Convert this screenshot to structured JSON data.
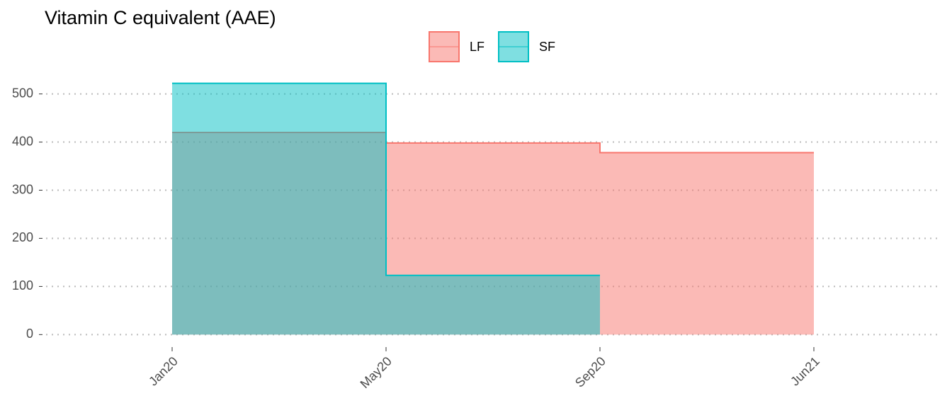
{
  "chart_data": {
    "type": "step_area",
    "title": "Vitamin C equivalent (AAE)",
    "categories": [
      "Jan20",
      "May20",
      "Sep20",
      "Jun21"
    ],
    "series": [
      {
        "name": "LF",
        "color": "#F8766D",
        "values": [
          420,
          398,
          378,
          378
        ]
      },
      {
        "name": "SF",
        "color": "#00BFC4",
        "values": [
          522,
          123,
          123,
          null
        ]
      }
    ],
    "ylim": [
      -26,
      548
    ],
    "yticks": [
      0,
      100,
      200,
      300,
      400,
      500
    ],
    "grid": true,
    "legend": "top"
  }
}
